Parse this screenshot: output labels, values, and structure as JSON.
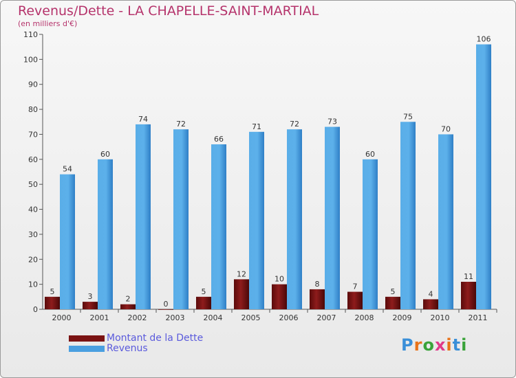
{
  "header": {
    "title": "Revenus/Dette - LA CHAPELLE-SAINT-MARTIAL",
    "subtitle": "(en milliers d'€)"
  },
  "chart_data": {
    "type": "bar",
    "title": "Revenus/Dette - LA CHAPELLE-SAINT-MARTIAL",
    "subtitle": "(en milliers d'€)",
    "categories": [
      "2000",
      "2001",
      "2002",
      "2003",
      "2004",
      "2005",
      "2006",
      "2007",
      "2008",
      "2009",
      "2010",
      "2011"
    ],
    "series": [
      {
        "name": "Montant de la Dette",
        "color": "#7a1212",
        "values": [
          5,
          3,
          2,
          0,
          5,
          12,
          10,
          8,
          7,
          5,
          4,
          11
        ]
      },
      {
        "name": "Revenus",
        "color": "#4a9fe0",
        "values": [
          54,
          60,
          74,
          72,
          66,
          71,
          72,
          73,
          60,
          75,
          70,
          106
        ]
      }
    ],
    "ylim": [
      0,
      110
    ],
    "yticks": [
      0,
      10,
      20,
      30,
      40,
      50,
      60,
      70,
      80,
      90,
      100,
      110
    ],
    "grid": false,
    "data_labels": true,
    "legend_position": "bottom-left"
  },
  "legend": {
    "items": [
      {
        "label": "Montant de la Dette",
        "color": "#7a1212"
      },
      {
        "label": "Revenus",
        "color": "#4a9fe0"
      }
    ]
  },
  "logo": {
    "text": "Proxiti",
    "letter_colors": [
      "#3a8fd8",
      "#e8731a",
      "#3aa33a",
      "#e03a8a",
      "#e8731a",
      "#3a8fd8",
      "#3aa33a"
    ]
  }
}
